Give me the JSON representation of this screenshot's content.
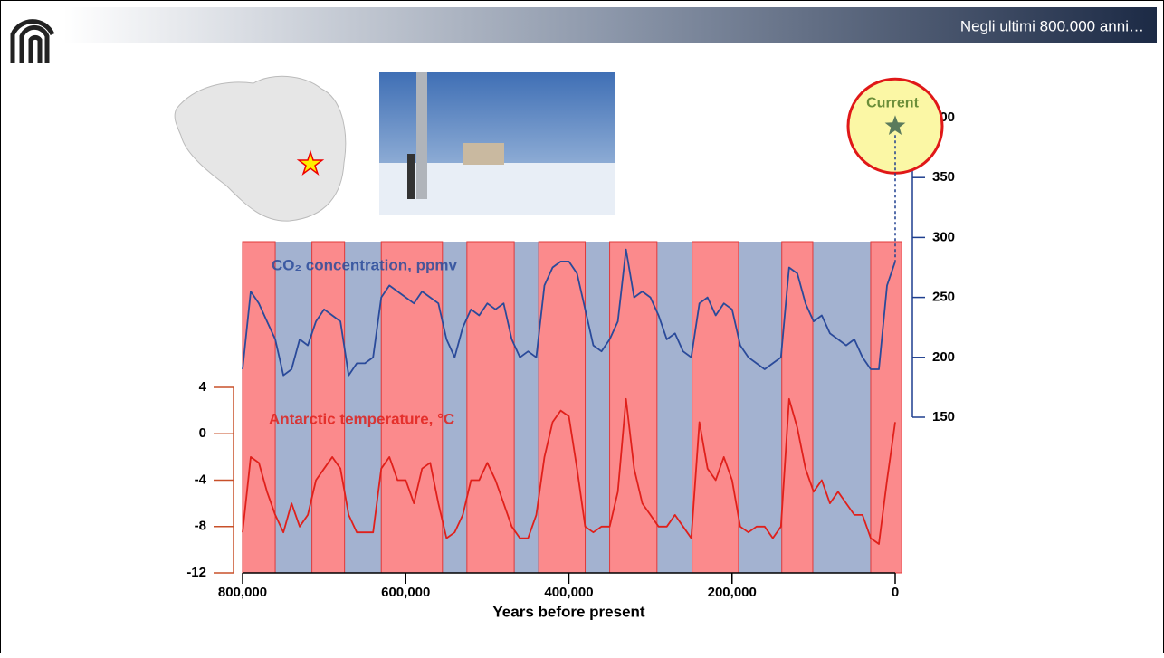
{
  "header": {
    "title": "Negli ultimi 800.000 anni…"
  },
  "chart_data": {
    "type": "line",
    "x_label": "Years before present",
    "x": [
      800000,
      790000,
      780000,
      770000,
      760000,
      750000,
      740000,
      730000,
      720000,
      710000,
      700000,
      690000,
      680000,
      670000,
      660000,
      650000,
      640000,
      630000,
      620000,
      610000,
      600000,
      590000,
      580000,
      570000,
      560000,
      550000,
      540000,
      530000,
      520000,
      510000,
      500000,
      490000,
      480000,
      470000,
      460000,
      450000,
      440000,
      430000,
      420000,
      410000,
      400000,
      390000,
      380000,
      370000,
      360000,
      350000,
      340000,
      330000,
      320000,
      310000,
      300000,
      290000,
      280000,
      270000,
      260000,
      250000,
      240000,
      230000,
      220000,
      210000,
      200000,
      190000,
      180000,
      170000,
      160000,
      150000,
      140000,
      130000,
      120000,
      110000,
      100000,
      90000,
      80000,
      70000,
      60000,
      50000,
      40000,
      30000,
      20000,
      10000,
      0
    ],
    "series": [
      {
        "name": "CO₂ concentration, ppmv",
        "color": "#2a4a9a",
        "axis": "y2",
        "values": [
          190,
          255,
          245,
          230,
          215,
          185,
          190,
          215,
          210,
          230,
          240,
          235,
          230,
          185,
          195,
          195,
          200,
          250,
          260,
          255,
          250,
          245,
          255,
          250,
          245,
          215,
          200,
          225,
          240,
          235,
          245,
          240,
          245,
          215,
          200,
          205,
          200,
          260,
          275,
          280,
          280,
          270,
          240,
          210,
          205,
          215,
          230,
          290,
          250,
          255,
          250,
          235,
          215,
          220,
          205,
          200,
          245,
          250,
          235,
          245,
          240,
          210,
          200,
          195,
          190,
          195,
          200,
          275,
          270,
          245,
          230,
          235,
          220,
          215,
          210,
          215,
          200,
          190,
          190,
          260,
          280
        ]
      },
      {
        "name": "Antarctic temperature, °C",
        "color": "#e0201b",
        "values": [
          -8.5,
          -2,
          -2.5,
          -5,
          -7,
          -8.5,
          -6,
          -8,
          -7,
          -4,
          -3,
          -2,
          -3,
          -7,
          -8.5,
          -8.5,
          -8.5,
          -3,
          -2,
          -4,
          -4,
          -6,
          -3,
          -2.5,
          -6,
          -9,
          -8.5,
          -7,
          -4,
          -4,
          -2.5,
          -4,
          -6,
          -8,
          -9,
          -9,
          -7,
          -2,
          1,
          2,
          1.5,
          -3,
          -8,
          -8.5,
          -8,
          -8,
          -5,
          3,
          -3,
          -6,
          -7,
          -8,
          -8,
          -7,
          -8,
          -9,
          1,
          -3,
          -4,
          -2,
          -4,
          -8,
          -8.5,
          -8,
          -8,
          -9,
          -8,
          3,
          0.5,
          -3,
          -5,
          -4,
          -6,
          -5,
          -6,
          -7,
          -7,
          -9,
          -9.5,
          -4,
          1
        ]
      }
    ],
    "xlim": [
      800000,
      0
    ],
    "xticks": [
      {
        "value": 800000,
        "label": "800,000"
      },
      {
        "value": 600000,
        "label": "600,000"
      },
      {
        "value": 400000,
        "label": "400,000"
      },
      {
        "value": 200000,
        "label": "200,000"
      },
      0
    ],
    "ylim": [
      -12,
      4
    ],
    "yticks": [
      4,
      0,
      -4,
      -8,
      -12
    ],
    "y2lim": [
      150,
      400
    ],
    "y2ticks": [
      150,
      200,
      250,
      300,
      350,
      400
    ],
    "shaded_periods": [
      {
        "from": 800000,
        "to": 760000
      },
      {
        "from": 715000,
        "to": 675000
      },
      {
        "from": 630000,
        "to": 555000
      },
      {
        "from": 525000,
        "to": 467000
      },
      {
        "from": 437000,
        "to": 380000
      },
      {
        "from": 350000,
        "to": 292000
      },
      {
        "from": 249000,
        "to": 192000
      },
      {
        "from": 139000,
        "to": 101000
      },
      {
        "from": 30000,
        "to": -8000
      }
    ],
    "shaded_color": "#fb8a8c",
    "background_color": "#a3b2d0",
    "annotation": {
      "text": "Current",
      "x": 0,
      "value": 393
    }
  }
}
